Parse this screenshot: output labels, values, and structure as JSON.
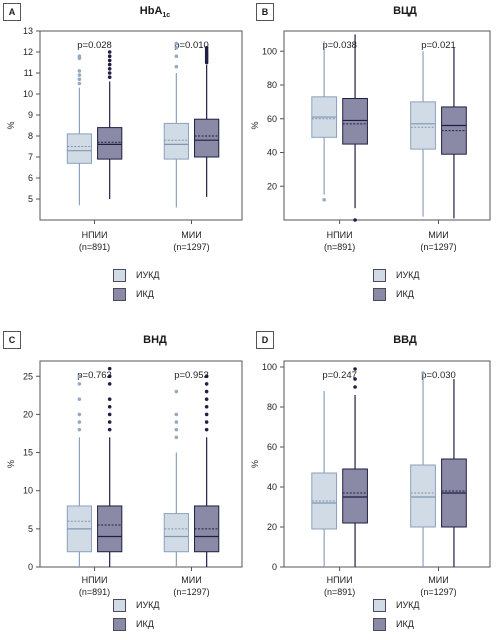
{
  "colors": {
    "iukd_fill": "#d1dbe5",
    "iukd_stroke": "#8aa2bc",
    "ikd_fill": "#8a8aa6",
    "ikd_stroke": "#1f1f45",
    "frame": "#555555"
  },
  "panels": [
    {
      "letter": "A",
      "title_main": "HbA",
      "title_sub": "1c"
    },
    {
      "letter": "B",
      "title_main": "ВЦД",
      "title_sub": ""
    },
    {
      "letter": "C",
      "title_main": "ВНД",
      "title_sub": ""
    },
    {
      "letter": "D",
      "title_main": "ВВД",
      "title_sub": ""
    }
  ],
  "legend": {
    "iukd_label": "ИУКД",
    "ikd_label": "ИКД"
  },
  "chart_data": [
    {
      "type": "box",
      "title": "HbA1c",
      "ylabel": "%",
      "ylim": [
        4,
        13
      ],
      "yticks": [
        5,
        6,
        7,
        8,
        9,
        10,
        11,
        12,
        13
      ],
      "groups": [
        {
          "label": "НПИИ",
          "n_label": "(n=891)",
          "pvalue": "p=0.028"
        },
        {
          "label": "МИИ",
          "n_label": "(n=1297)",
          "pvalue": "p=0.010"
        }
      ],
      "series": [
        {
          "name": "ИУКД",
          "boxes": [
            {
              "q1": 6.7,
              "median": 7.3,
              "mean": 7.5,
              "q3": 8.1,
              "whisker_low": 4.7,
              "whisker_high": 10.3,
              "outliers": [
                10.5,
                10.7,
                10.9,
                11.1,
                11.7,
                11.8
              ]
            },
            {
              "q1": 6.9,
              "median": 7.6,
              "mean": 7.8,
              "q3": 8.6,
              "whisker_low": 4.6,
              "whisker_high": 11.0,
              "outliers": [
                11.3,
                11.8,
                12.2,
                12.4
              ]
            }
          ]
        },
        {
          "name": "ИКД",
          "boxes": [
            {
              "q1": 6.9,
              "median": 7.6,
              "mean": 7.7,
              "q3": 8.4,
              "whisker_low": 5.0,
              "whisker_high": 10.6,
              "outliers": [
                10.8,
                11.0,
                11.2,
                11.4,
                11.6,
                11.8,
                12.0
              ]
            },
            {
              "q1": 7.0,
              "median": 7.8,
              "mean": 8.0,
              "q3": 8.8,
              "whisker_low": 5.1,
              "whisker_high": 11.4,
              "outliers": [
                11.5,
                11.6,
                11.7,
                11.8,
                11.9,
                12.0,
                12.1,
                12.2
              ]
            }
          ]
        }
      ]
    },
    {
      "type": "box",
      "title": "ВЦД",
      "ylabel": "%",
      "ylim": [
        0,
        112
      ],
      "yticks": [
        20,
        40,
        60,
        80,
        100
      ],
      "groups": [
        {
          "label": "НПИИ",
          "n_label": "(n=891)",
          "pvalue": "p=0.038"
        },
        {
          "label": "МИИ",
          "n_label": "(n=1297)",
          "pvalue": "p=0.021"
        }
      ],
      "series": [
        {
          "name": "ИУКД",
          "boxes": [
            {
              "q1": 49,
              "median": 61,
              "mean": 60,
              "q3": 73,
              "whisker_low": 15,
              "whisker_high": 106,
              "outliers": [
                12
              ]
            },
            {
              "q1": 42,
              "median": 57,
              "mean": 55,
              "q3": 70,
              "whisker_low": 2,
              "whisker_high": 100,
              "outliers": []
            }
          ]
        },
        {
          "name": "ИКД",
          "boxes": [
            {
              "q1": 45,
              "median": 59,
              "mean": 57,
              "q3": 72,
              "whisker_low": 7,
              "whisker_high": 110,
              "outliers": [
                0
              ]
            },
            {
              "q1": 39,
              "median": 56,
              "mean": 53,
              "q3": 67,
              "whisker_low": 1,
              "whisker_high": 102,
              "outliers": []
            }
          ]
        }
      ]
    },
    {
      "type": "box",
      "title": "ВНД",
      "ylabel": "%",
      "ylim": [
        0,
        27
      ],
      "yticks": [
        0,
        5,
        10,
        15,
        20,
        25
      ],
      "groups": [
        {
          "label": "НПИИ",
          "n_label": "(n=891)",
          "pvalue": "p=0.763"
        },
        {
          "label": "МИИ",
          "n_label": "(n=1297)",
          "pvalue": "p=0.953"
        }
      ],
      "series": [
        {
          "name": "ИУКД",
          "boxes": [
            {
              "q1": 2,
              "median": 5,
              "mean": 6,
              "q3": 8,
              "whisker_low": 0,
              "whisker_high": 17,
              "outliers": [
                18,
                19,
                20,
                22,
                24,
                25
              ]
            },
            {
              "q1": 2,
              "median": 4,
              "mean": 5,
              "q3": 7,
              "whisker_low": 0,
              "whisker_high": 15,
              "outliers": [
                17,
                18,
                19,
                20,
                23
              ]
            }
          ]
        },
        {
          "name": "ИКД",
          "boxes": [
            {
              "q1": 2,
              "median": 4,
              "mean": 5.5,
              "q3": 8,
              "whisker_low": 0,
              "whisker_high": 17,
              "outliers": [
                18,
                19,
                20,
                21,
                22,
                24,
                25,
                26
              ]
            },
            {
              "q1": 2,
              "median": 4,
              "mean": 5,
              "q3": 8,
              "whisker_low": 0,
              "whisker_high": 17,
              "outliers": [
                18,
                19,
                20,
                21,
                22,
                23,
                24,
                25
              ]
            }
          ]
        }
      ]
    },
    {
      "type": "box",
      "title": "ВВД",
      "ylabel": "%",
      "ylim": [
        0,
        103
      ],
      "yticks": [
        0,
        20,
        40,
        60,
        80,
        100
      ],
      "groups": [
        {
          "label": "НПИИ",
          "n_label": "(n=891)",
          "pvalue": "p=0.247"
        },
        {
          "label": "МИИ",
          "n_label": "(n=1297)",
          "pvalue": "p=0.030"
        }
      ],
      "series": [
        {
          "name": "ИУКД",
          "boxes": [
            {
              "q1": 19,
              "median": 32,
              "mean": 33,
              "q3": 47,
              "whisker_low": 0,
              "whisker_high": 88,
              "outliers": []
            },
            {
              "q1": 20,
              "median": 35,
              "mean": 37,
              "q3": 51,
              "whisker_low": 0,
              "whisker_high": 96,
              "outliers": [
                97
              ]
            }
          ]
        },
        {
          "name": "ИКД",
          "boxes": [
            {
              "q1": 22,
              "median": 35,
              "mean": 37,
              "q3": 49,
              "whisker_low": 0,
              "whisker_high": 86,
              "outliers": [
                90,
                94,
                99
              ]
            },
            {
              "q1": 20,
              "median": 37,
              "mean": 38,
              "q3": 54,
              "whisker_low": 0,
              "whisker_high": 94,
              "outliers": []
            }
          ]
        }
      ]
    }
  ]
}
